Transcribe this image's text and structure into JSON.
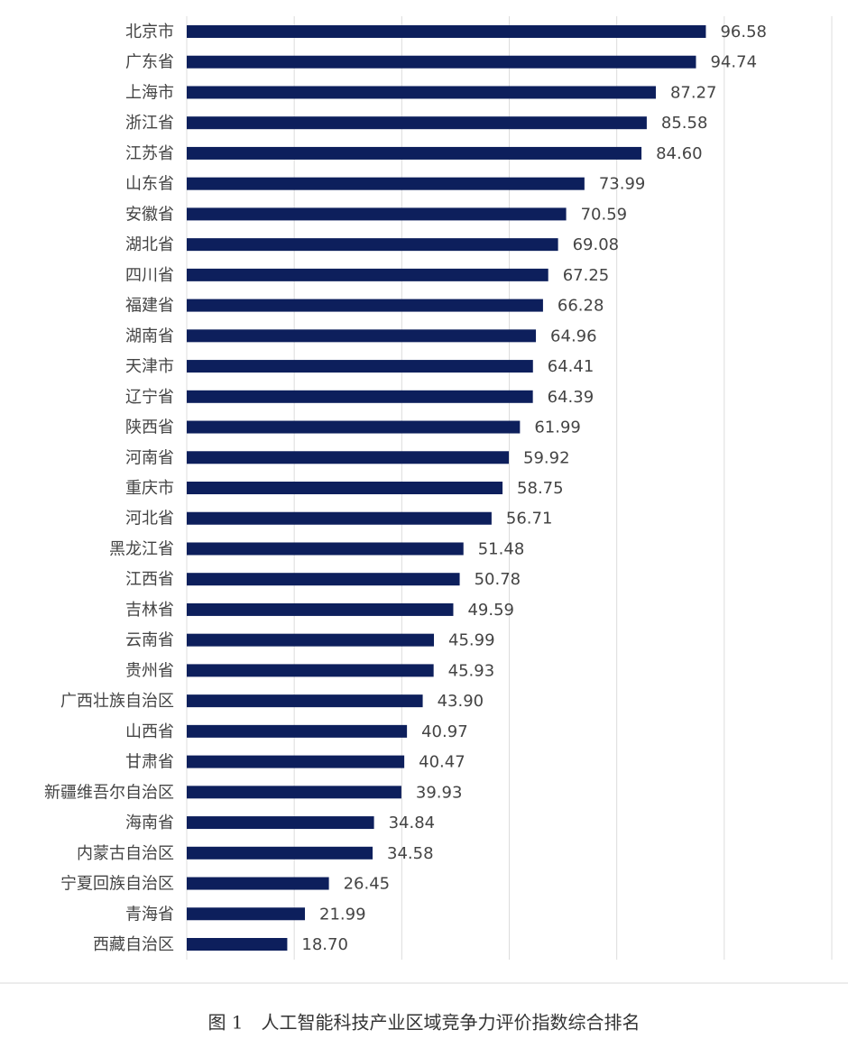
{
  "chart_data": {
    "type": "hbar",
    "categories": [
      "北京市",
      "广东省",
      "上海市",
      "浙江省",
      "江苏省",
      "山东省",
      "安徽省",
      "湖北省",
      "四川省",
      "福建省",
      "湖南省",
      "天津市",
      "辽宁省",
      "陕西省",
      "河南省",
      "重庆市",
      "河北省",
      "黑龙江省",
      "江西省",
      "吉林省",
      "云南省",
      "贵州省",
      "广西壮族自治区",
      "山西省",
      "甘肃省",
      "新疆维吾尔自治区",
      "海南省",
      "内蒙古自治区",
      "宁夏回族自治区",
      "青海省",
      "西藏自治区"
    ],
    "values": [
      96.58,
      94.74,
      87.27,
      85.58,
      84.6,
      73.99,
      70.59,
      69.08,
      67.25,
      66.28,
      64.96,
      64.41,
      64.39,
      61.99,
      59.92,
      58.75,
      56.71,
      51.48,
      50.78,
      49.59,
      45.99,
      45.93,
      43.9,
      40.97,
      40.47,
      39.93,
      34.84,
      34.58,
      26.45,
      21.99,
      18.7
    ],
    "value_labels": [
      "96.58",
      "94.74",
      "87.27",
      "85.58",
      "84.60",
      "73.99",
      "70.59",
      "69.08",
      "67.25",
      "66.28",
      "64.96",
      "64.41",
      "64.39",
      "61.99",
      "59.92",
      "58.75",
      "56.71",
      "51.48",
      "50.78",
      "49.59",
      "45.99",
      "45.93",
      "43.90",
      "40.97",
      "40.47",
      "39.93",
      "34.84",
      "34.58",
      "26.45",
      "21.99",
      "18.70"
    ],
    "color": "#0d1f5c",
    "xlim": [
      0,
      120
    ],
    "xticks": [
      0,
      20,
      40,
      60,
      80,
      100,
      120
    ],
    "grid": true,
    "caption": "图 1　人工智能科技产业区域竞争力评价指数综合排名"
  }
}
